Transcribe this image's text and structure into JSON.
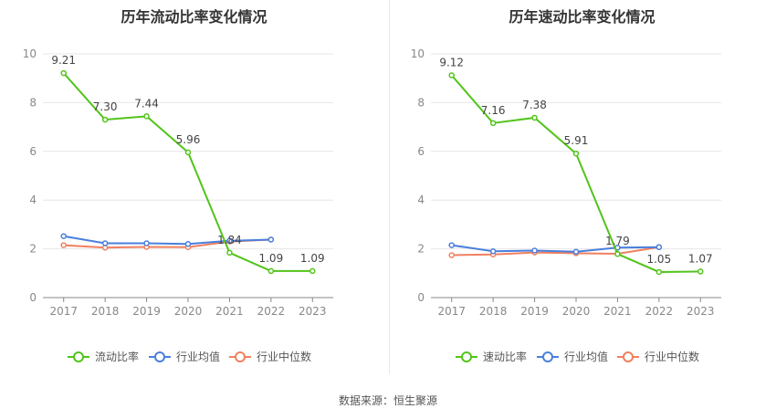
{
  "source": "数据来源：恒生聚源",
  "colors": {
    "main": "#52c41a",
    "avg": "#4a7fdc",
    "median": "#f08060"
  },
  "chart_data": [
    {
      "type": "line",
      "title": "历年流动比率变化情况",
      "x": [
        "2017",
        "2018",
        "2019",
        "2020",
        "2021",
        "2022",
        "2023"
      ],
      "ylim": [
        0,
        10
      ],
      "yticks": [
        "0",
        "2",
        "4",
        "6",
        "8",
        "10"
      ],
      "grid": true,
      "legend_position": "bottom",
      "series": [
        {
          "name": "流动比率",
          "values": [
            9.21,
            7.3,
            7.44,
            5.96,
            1.84,
            1.09,
            1.09
          ],
          "labels": [
            "9.21",
            "7.30",
            "7.44",
            "5.96",
            "1.84",
            "1.09",
            "1.09"
          ]
        },
        {
          "name": "行业均值",
          "values": [
            2.52,
            2.23,
            2.23,
            2.2,
            2.33,
            2.38,
            null
          ]
        },
        {
          "name": "行业中位数",
          "values": [
            2.15,
            2.05,
            2.08,
            2.07,
            2.3,
            2.38,
            null
          ]
        }
      ]
    },
    {
      "type": "line",
      "title": "历年速动比率变化情况",
      "x": [
        "2017",
        "2018",
        "2019",
        "2020",
        "2021",
        "2022",
        "2023"
      ],
      "ylim": [
        0,
        10
      ],
      "yticks": [
        "0",
        "2",
        "4",
        "6",
        "8",
        "10"
      ],
      "grid": true,
      "legend_position": "bottom",
      "series": [
        {
          "name": "速动比率",
          "values": [
            9.12,
            7.16,
            7.38,
            5.91,
            1.79,
            1.05,
            1.07
          ],
          "labels": [
            "9.12",
            "7.16",
            "7.38",
            "5.91",
            "1.79",
            "1.05",
            "1.07"
          ]
        },
        {
          "name": "行业均值",
          "values": [
            2.15,
            1.9,
            1.93,
            1.88,
            2.05,
            2.07,
            null
          ]
        },
        {
          "name": "行业中位数",
          "values": [
            1.74,
            1.77,
            1.85,
            1.82,
            1.8,
            2.07,
            null
          ]
        }
      ]
    }
  ]
}
